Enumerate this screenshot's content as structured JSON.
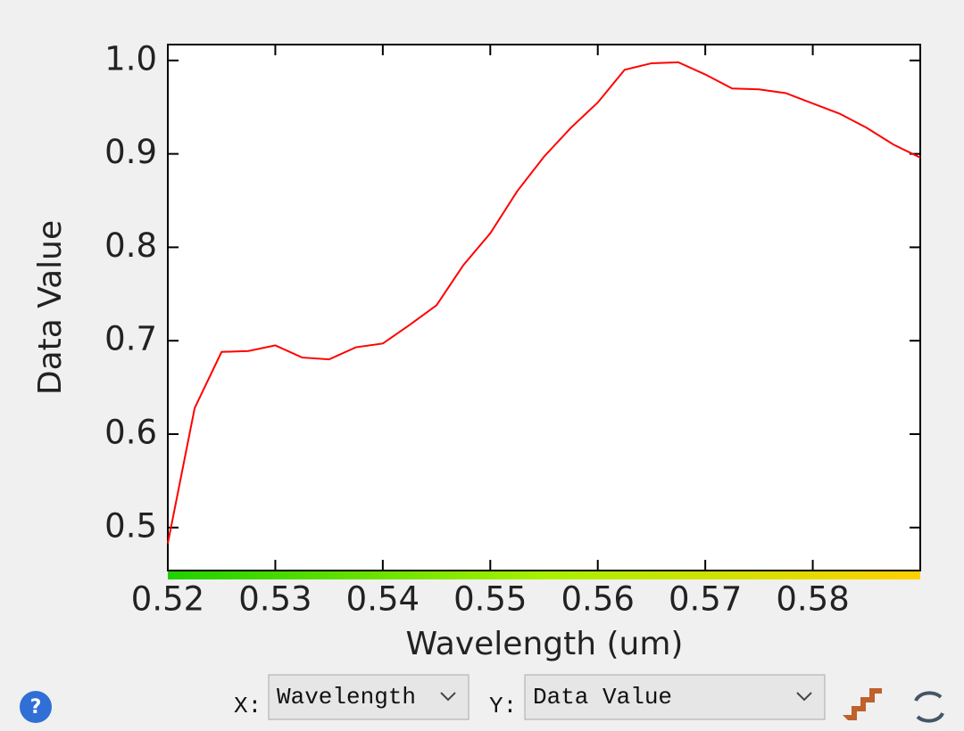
{
  "chart_data": {
    "type": "line",
    "x_label": "Wavelength (um)",
    "y_label": "Data Value",
    "x": [
      0.52,
      0.5225,
      0.525,
      0.5275,
      0.53,
      0.5325,
      0.535,
      0.5375,
      0.54,
      0.5425,
      0.545,
      0.5475,
      0.55,
      0.5525,
      0.555,
      0.5575,
      0.56,
      0.5625,
      0.565,
      0.5675,
      0.57,
      0.5725,
      0.575,
      0.5775,
      0.58,
      0.5825,
      0.585,
      0.5875,
      0.59
    ],
    "values": [
      0.483,
      0.628,
      0.688,
      0.689,
      0.695,
      0.682,
      0.68,
      0.693,
      0.697,
      0.717,
      0.738,
      0.781,
      0.815,
      0.86,
      0.897,
      0.928,
      0.955,
      0.99,
      0.997,
      0.998,
      0.985,
      0.97,
      0.969,
      0.965,
      0.954,
      0.943,
      0.928,
      0.91,
      0.896
    ],
    "color": "#ff0000",
    "xlim": [
      0.52,
      0.59
    ],
    "xticks": [
      0.52,
      0.53,
      0.54,
      0.55,
      0.56,
      0.57,
      0.58
    ],
    "ylim": [
      0.454,
      1.017
    ],
    "yticks": [
      0.5,
      0.6,
      0.7,
      0.8,
      0.9,
      {
        "value": 1,
        "label": "1.0"
      }
    ]
  },
  "controls": {
    "help": "?",
    "x_label": "X:",
    "x_select": "Wavelength",
    "y_label": "Y:",
    "y_select": "Data Value"
  }
}
